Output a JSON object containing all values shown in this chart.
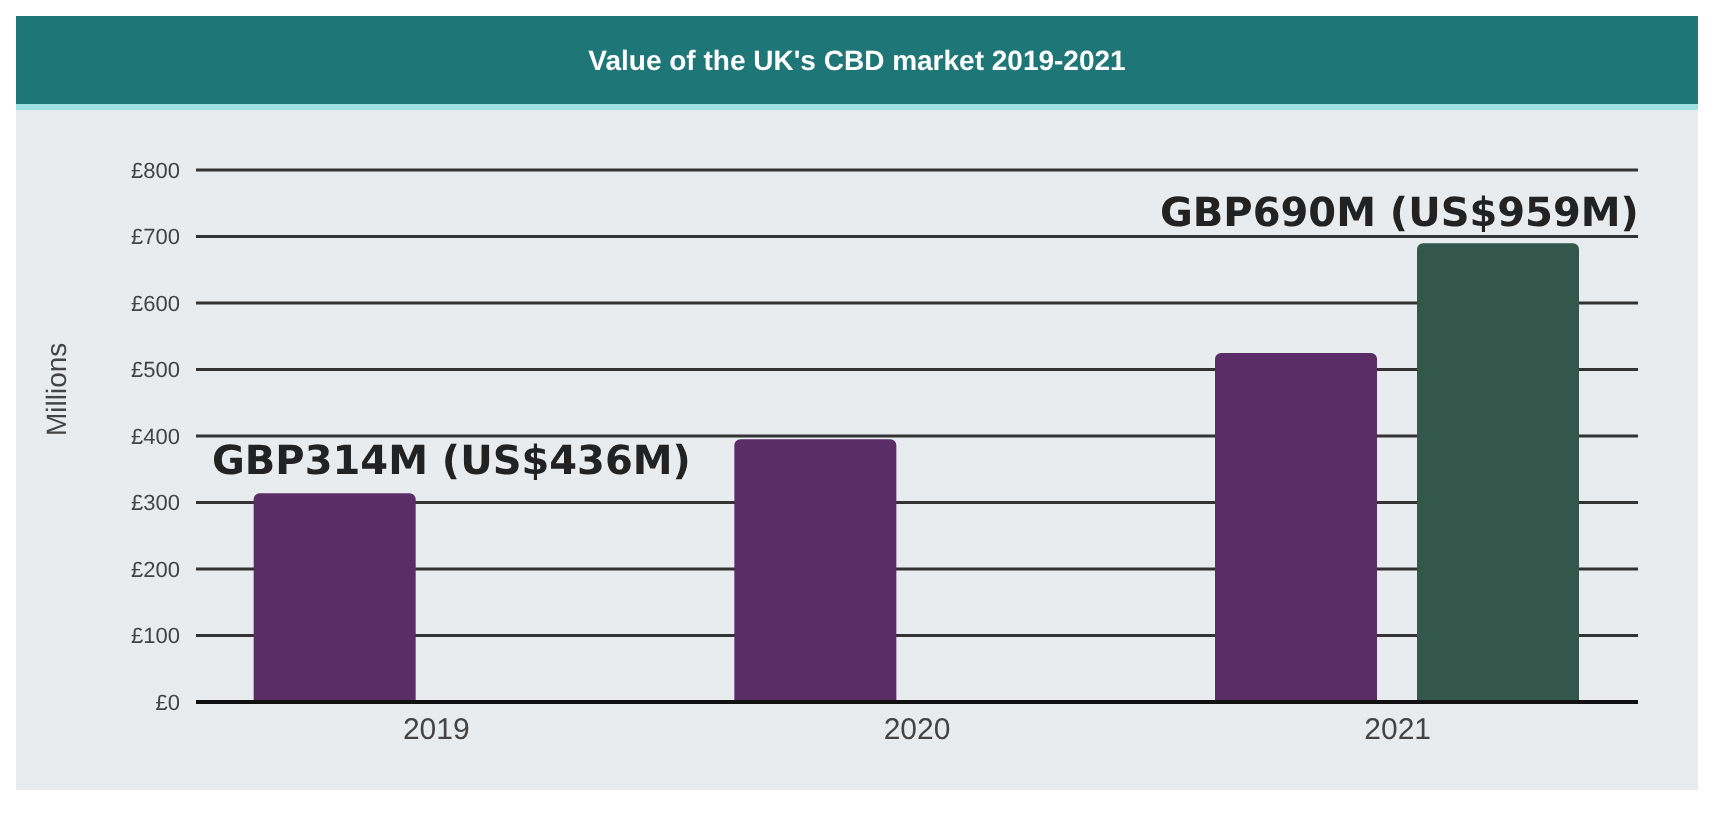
{
  "chart_data": {
    "type": "bar",
    "title": "Value of the UK's CBD market 2019-2021",
    "ylabel": "Millions",
    "categories": [
      "2019",
      "2020",
      "2021"
    ],
    "series": [
      {
        "color": "#5a2d66",
        "values": [
          314,
          395,
          525
        ]
      },
      {
        "color": "#33574a",
        "values": [
          null,
          null,
          690
        ]
      }
    ],
    "ylim": [
      0,
      800
    ],
    "yticks": [
      {
        "value": 0,
        "label": "£0"
      },
      {
        "value": 100,
        "label": "£100"
      },
      {
        "value": 200,
        "label": "£200"
      },
      {
        "value": 300,
        "label": "£300"
      },
      {
        "value": 400,
        "label": "£400"
      },
      {
        "value": 500,
        "label": "£500"
      },
      {
        "value": 600,
        "label": "£600"
      },
      {
        "value": 700,
        "label": "£700"
      },
      {
        "value": 800,
        "label": "£800"
      }
    ],
    "grid": "y",
    "annotations": [
      "GBP314M (US$436M)",
      "GBP690M (US$959M)"
    ]
  }
}
